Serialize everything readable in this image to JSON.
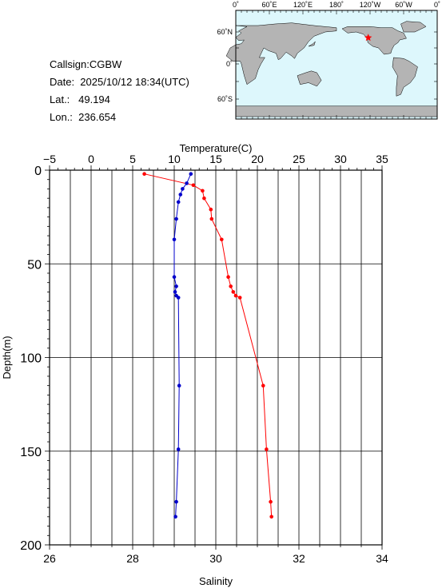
{
  "info": {
    "callsign": "Callsign:CGBW",
    "date": "Date:  2025/10/12 18:34(UTC)",
    "lat": "Lat.:   49.194",
    "lon": "Lon.:  236.654"
  },
  "map": {
    "lon_labels": [
      "0˚",
      "60˚E",
      "120˚E",
      "180˚",
      "120˚W",
      "60˚W",
      "0˚"
    ],
    "lat_labels": [
      "60˚N",
      "0˚",
      "60˚S"
    ],
    "station": {
      "lon": 236.654,
      "lat": 49.194,
      "marker": "red-star"
    },
    "colors": {
      "ocean": "#ddf7fc",
      "land": "#b4b4b4",
      "marker": "#ff0000"
    }
  },
  "chart_data": {
    "type": "line",
    "x_top_label": "Temperature(C)",
    "x_bottom_label": "Salinity",
    "ylabel": "Depth(m)",
    "temp_ticks": [
      "−5",
      "0",
      "5",
      "10",
      "15",
      "20",
      "25",
      "30",
      "35"
    ],
    "sal_ticks": [
      "26",
      "28",
      "30",
      "32",
      "34"
    ],
    "depth_ticks": [
      "0",
      "50",
      "100",
      "150",
      "200"
    ],
    "temp_range": [
      -5,
      35
    ],
    "sal_range": [
      26,
      34
    ],
    "depth_range": [
      0,
      200
    ],
    "grid": true,
    "series": [
      {
        "name": "Temperature",
        "axis": "temperature",
        "color": "#ff0000",
        "points": [
          [
            6.4,
            2
          ],
          [
            12.3,
            8
          ],
          [
            13.4,
            11
          ],
          [
            13.6,
            15
          ],
          [
            14.4,
            21
          ],
          [
            14.5,
            26
          ],
          [
            15.7,
            37
          ],
          [
            16.5,
            57
          ],
          [
            16.8,
            62
          ],
          [
            17.1,
            65
          ],
          [
            17.4,
            67
          ],
          [
            17.9,
            68
          ],
          [
            20.7,
            115
          ],
          [
            21.1,
            149
          ],
          [
            21.6,
            177
          ],
          [
            21.7,
            185
          ]
        ]
      },
      {
        "name": "Salinity",
        "axis": "salinity",
        "color": "#0000cc",
        "points": [
          [
            29.4,
            2
          ],
          [
            29.3,
            7
          ],
          [
            29.2,
            10
          ],
          [
            29.15,
            13
          ],
          [
            29.1,
            17
          ],
          [
            29.05,
            26
          ],
          [
            29.0,
            37
          ],
          [
            29.0,
            57
          ],
          [
            29.05,
            62
          ],
          [
            29.02,
            65
          ],
          [
            29.05,
            67
          ],
          [
            29.1,
            68
          ],
          [
            29.12,
            115
          ],
          [
            29.1,
            149
          ],
          [
            29.05,
            177
          ],
          [
            29.03,
            185
          ]
        ]
      }
    ]
  }
}
